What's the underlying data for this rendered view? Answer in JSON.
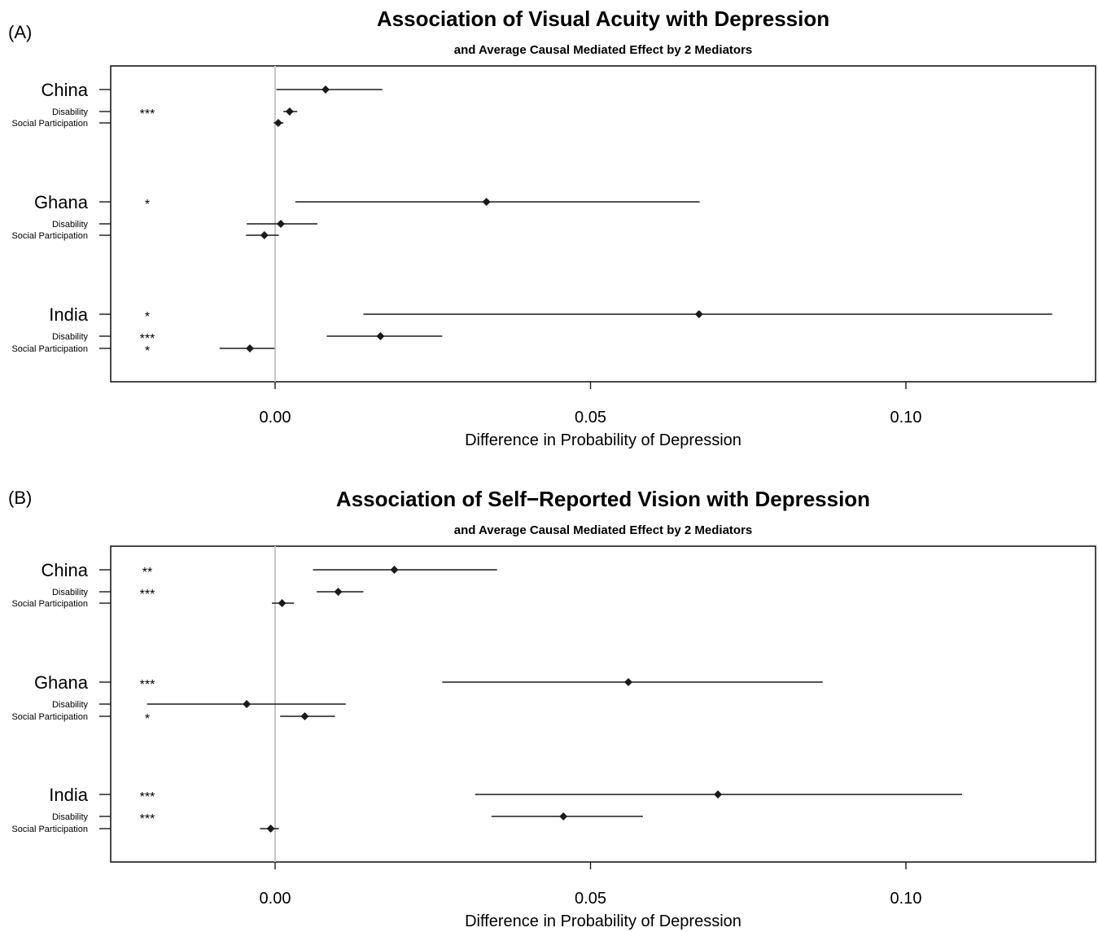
{
  "chart_data": [
    {
      "type": "forest",
      "panel_label": "(A)",
      "title": "Association of Visual Acuity with Depression",
      "subtitle": "and Average Causal Mediated Effect by 2 Mediators",
      "xlabel": "Difference in Probability of Depression",
      "xlim": [
        -0.026,
        0.13
      ],
      "xticks": [
        0.0,
        0.05,
        0.1
      ],
      "xtick_labels": [
        "0.00",
        "0.05",
        "0.10"
      ],
      "reference_line": 0,
      "groups": [
        {
          "country": "China",
          "stars": "",
          "estimate": 0.008,
          "ci": [
            0.0002,
            0.017
          ],
          "mediators": [
            {
              "name": "Disability",
              "stars": "***",
              "estimate": 0.0023,
              "ci": [
                0.0013,
                0.0035
              ]
            },
            {
              "name": "Social Participation",
              "stars": "",
              "estimate": 0.0005,
              "ci": [
                -0.0002,
                0.0013
              ]
            }
          ]
        },
        {
          "country": "Ghana",
          "stars": "*",
          "estimate": 0.0335,
          "ci": [
            0.0032,
            0.0673
          ],
          "mediators": [
            {
              "name": "Disability",
              "stars": "",
              "estimate": 0.0009,
              "ci": [
                -0.0045,
                0.0067
              ]
            },
            {
              "name": "Social Participation",
              "stars": "",
              "estimate": -0.0017,
              "ci": [
                -0.0046,
                0.0006
              ]
            }
          ]
        },
        {
          "country": "India",
          "stars": "*",
          "estimate": 0.0672,
          "ci": [
            0.014,
            0.1232
          ],
          "mediators": [
            {
              "name": "Disability",
              "stars": "***",
              "estimate": 0.0167,
              "ci": [
                0.0082,
                0.0265
              ]
            },
            {
              "name": "Social Participation",
              "stars": "*",
              "estimate": -0.004,
              "ci": [
                -0.0088,
                -0.0001
              ]
            }
          ]
        }
      ]
    },
    {
      "type": "forest",
      "panel_label": "(B)",
      "title": "Association of Self−Reported Vision with Depression",
      "subtitle": "and Average Causal Mediated Effect by 2 Mediators",
      "xlabel": "Difference in Probability of Depression",
      "xlim": [
        -0.026,
        0.13
      ],
      "xticks": [
        0.0,
        0.05,
        0.1
      ],
      "xtick_labels": [
        "0.00",
        "0.05",
        "0.10"
      ],
      "reference_line": 0,
      "groups": [
        {
          "country": "China",
          "stars": "**",
          "estimate": 0.0189,
          "ci": [
            0.006,
            0.0352
          ],
          "mediators": [
            {
              "name": "Disability",
              "stars": "***",
              "estimate": 0.01,
              "ci": [
                0.0066,
                0.014
              ]
            },
            {
              "name": "Social Participation",
              "stars": "",
              "estimate": 0.0011,
              "ci": [
                -0.0005,
                0.003
              ]
            }
          ]
        },
        {
          "country": "Ghana",
          "stars": "***",
          "estimate": 0.056,
          "ci": [
            0.0265,
            0.0868
          ],
          "mediators": [
            {
              "name": "Disability",
              "stars": "",
              "estimate": -0.0045,
              "ci": [
                -0.0203,
                0.0112
              ]
            },
            {
              "name": "Social Participation",
              "stars": "*",
              "estimate": 0.0047,
              "ci": [
                0.0008,
                0.0095
              ]
            }
          ]
        },
        {
          "country": "India",
          "stars": "***",
          "estimate": 0.0702,
          "ci": [
            0.0317,
            0.1089
          ],
          "mediators": [
            {
              "name": "Disability",
              "stars": "***",
              "estimate": 0.0457,
              "ci": [
                0.0343,
                0.0583
              ]
            },
            {
              "name": "Social Participation",
              "stars": "",
              "estimate": -0.0007,
              "ci": [
                -0.0024,
                0.0006
              ]
            }
          ]
        }
      ]
    }
  ]
}
